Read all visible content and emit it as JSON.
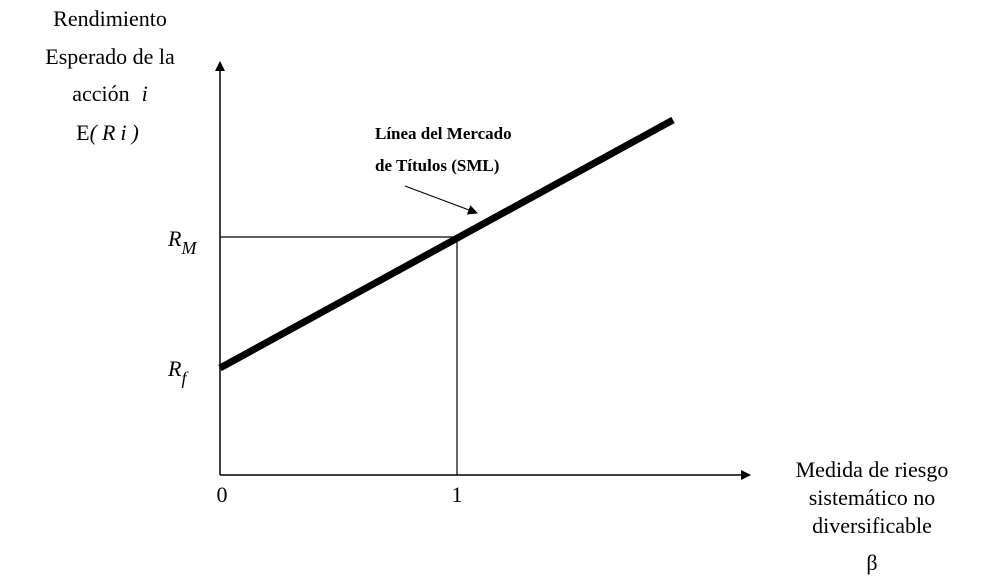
{
  "y_axis_label": {
    "line1": "Rendimiento",
    "line2": "Esperado de la",
    "line3": {
      "text": "acción",
      "var": "i"
    },
    "line4": {
      "text": "E",
      "var": "(Ri)"
    }
  },
  "x_axis_label": {
    "line1": "Medida de riesgo",
    "line2": "sistemático no",
    "line3": "diversificable",
    "symbol": "β"
  },
  "market_return": {
    "base": "R",
    "sub": "M"
  },
  "risk_free": {
    "base": "R",
    "sub": "f"
  },
  "annotation": {
    "line1": "Línea del Mercado",
    "line2": "de Títulos (SML)"
  },
  "x_ticks": [
    "0",
    "1"
  ]
}
